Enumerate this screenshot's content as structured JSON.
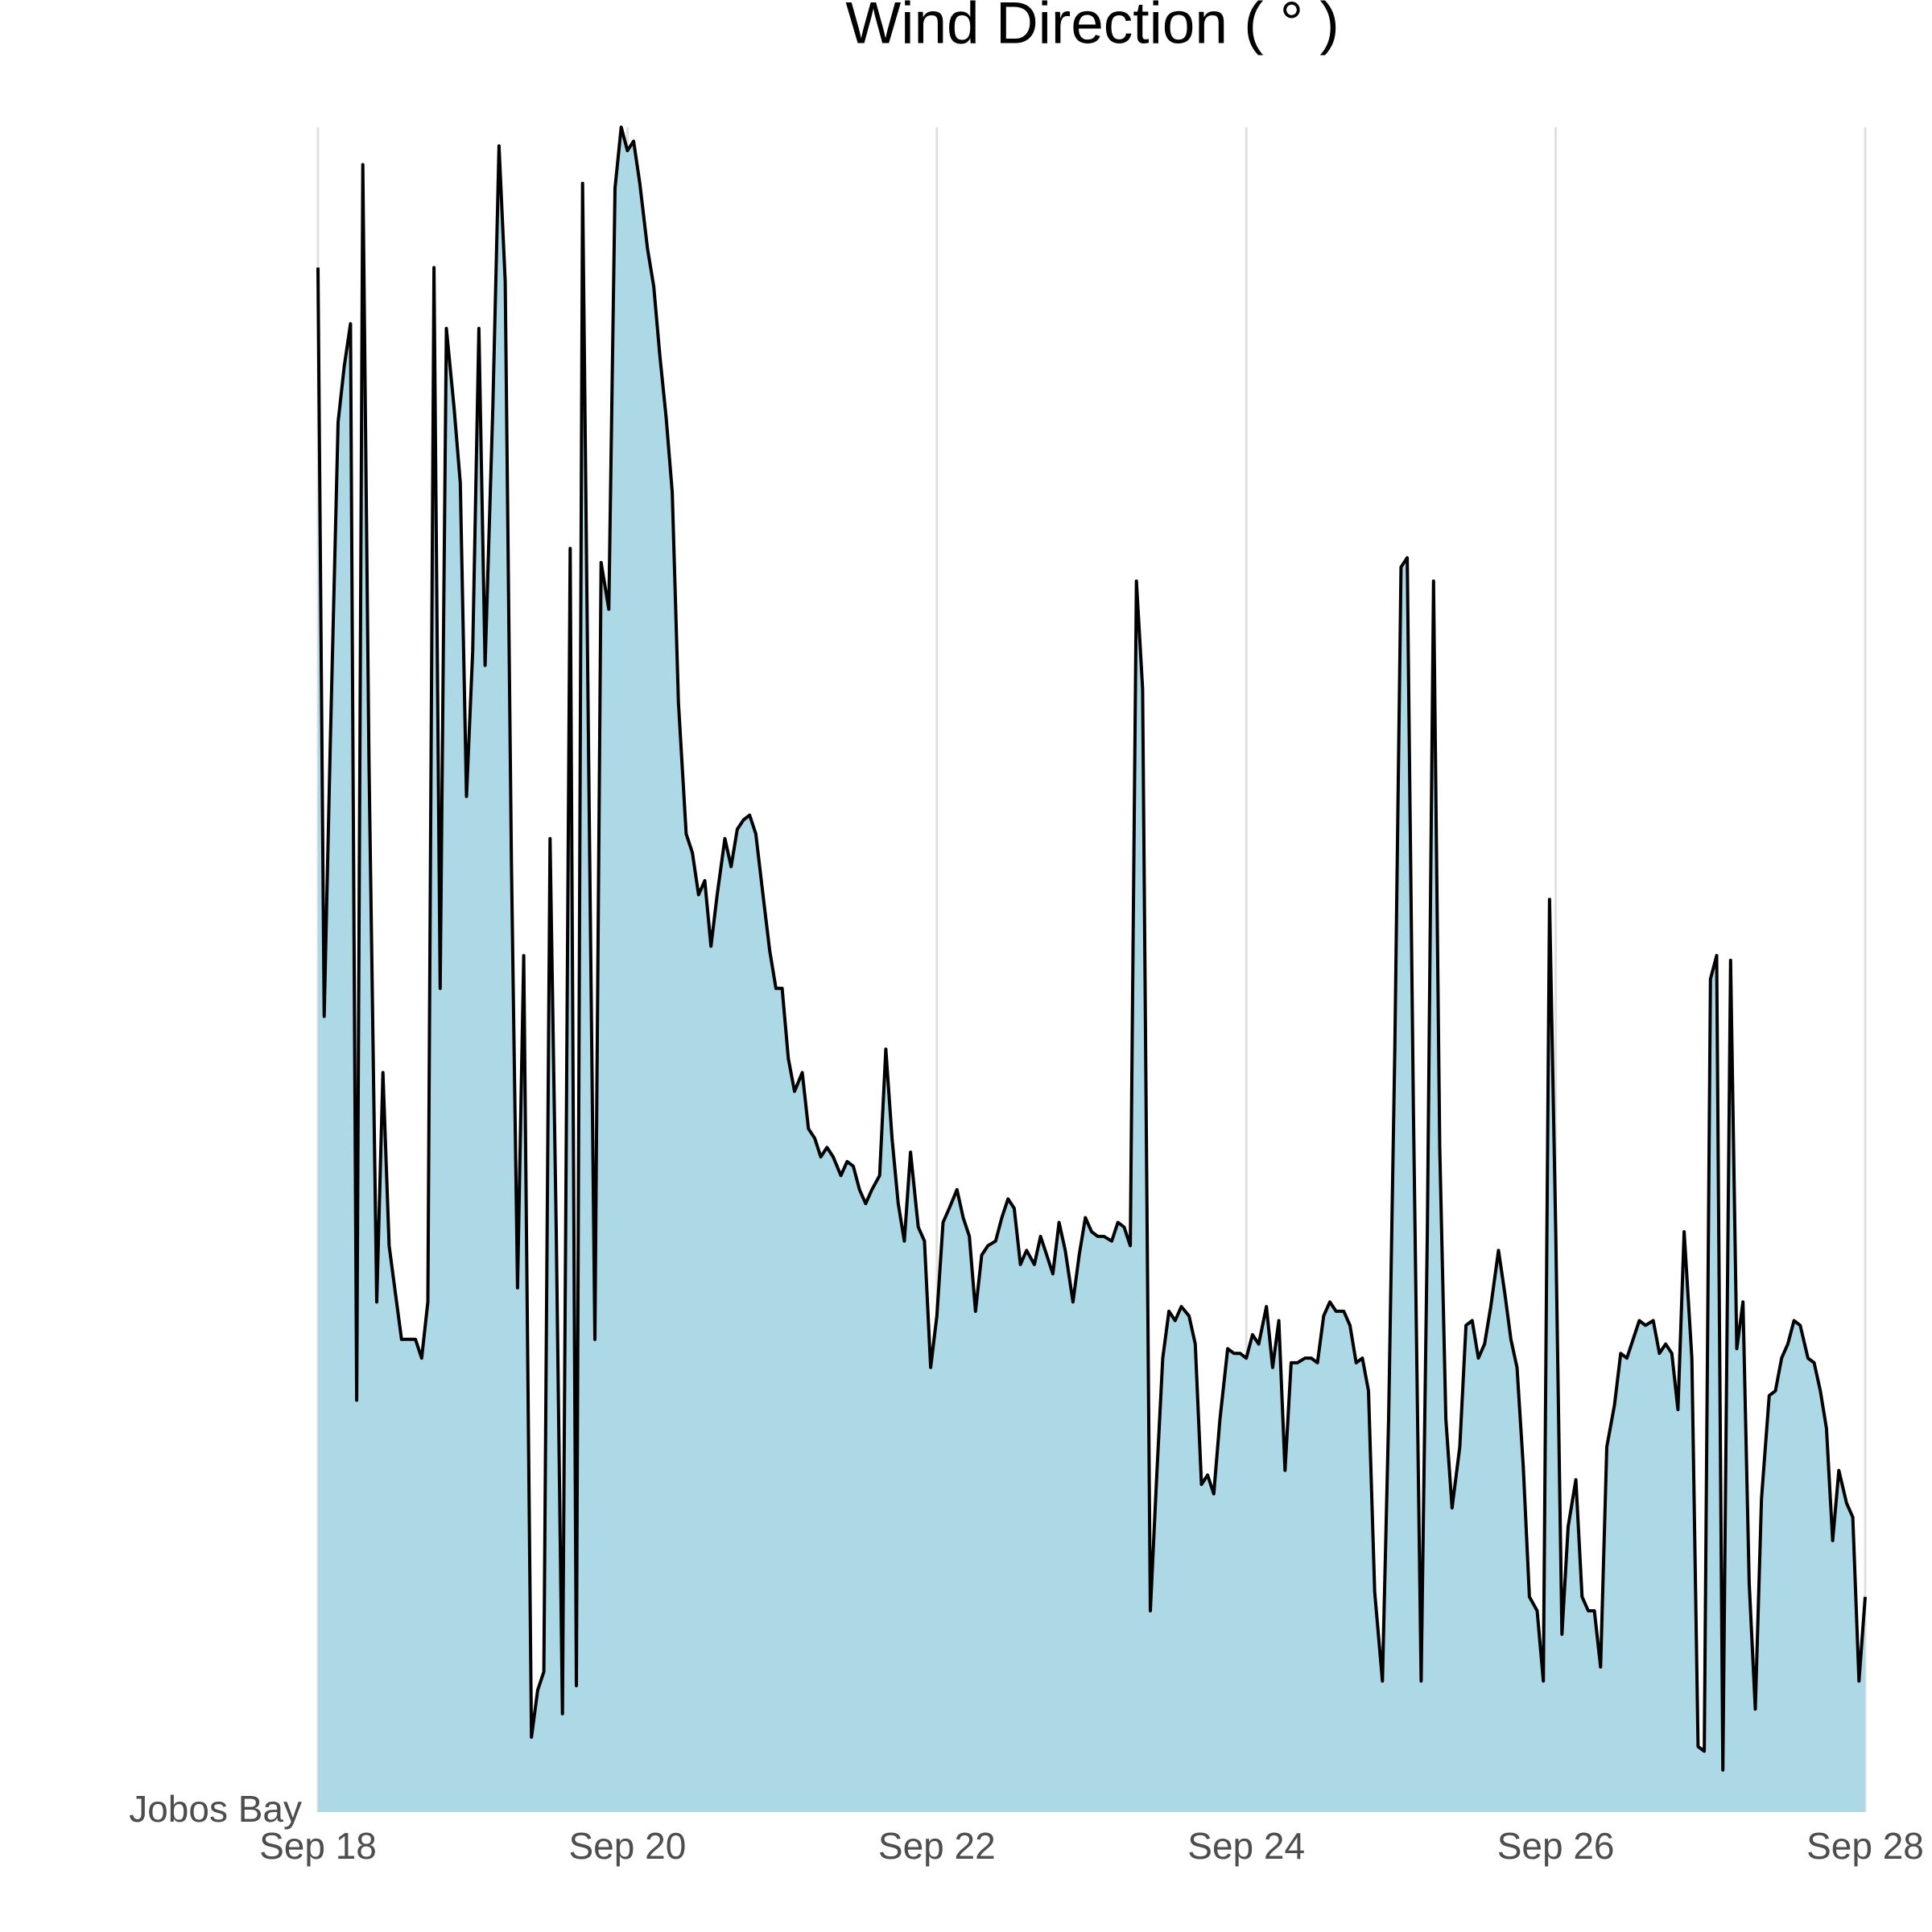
{
  "chart_data": {
    "type": "area",
    "title": "Wind Direction ( ° )",
    "x": [
      18,
      18.04,
      18.08,
      18.13,
      18.17,
      18.21,
      18.25,
      18.29,
      18.33,
      18.38,
      18.42,
      18.46,
      18.5,
      18.54,
      18.58,
      18.63,
      18.67,
      18.71,
      18.75,
      18.79,
      18.83,
      18.88,
      18.92,
      18.96,
      19,
      19.04,
      19.08,
      19.13,
      19.17,
      19.21,
      19.25,
      19.29,
      19.33,
      19.38,
      19.42,
      19.46,
      19.5,
      19.54,
      19.58,
      19.63,
      19.67,
      19.71,
      19.75,
      19.79,
      19.83,
      19.88,
      19.92,
      19.96,
      20,
      20.04,
      20.08,
      20.13,
      20.17,
      20.21,
      20.25,
      20.29,
      20.33,
      20.38,
      20.42,
      20.46,
      20.5,
      20.54,
      20.58,
      20.63,
      20.67,
      20.71,
      20.75,
      20.79,
      20.83,
      20.88,
      20.92,
      20.96,
      21,
      21.04,
      21.08,
      21.13,
      21.17,
      21.21,
      21.25,
      21.29,
      21.33,
      21.38,
      21.42,
      21.46,
      21.5,
      21.54,
      21.58,
      21.63,
      21.67,
      21.71,
      21.75,
      21.79,
      21.83,
      21.88,
      21.92,
      21.96,
      22,
      22.04,
      22.08,
      22.13,
      22.17,
      22.21,
      22.25,
      22.29,
      22.33,
      22.38,
      22.42,
      22.46,
      22.5,
      22.54,
      22.58,
      22.63,
      22.67,
      22.71,
      22.75,
      22.79,
      22.83,
      22.88,
      22.92,
      22.96,
      23,
      23.04,
      23.08,
      23.13,
      23.17,
      23.21,
      23.25,
      23.29,
      23.33,
      23.38,
      23.42,
      23.46,
      23.5,
      23.54,
      23.58,
      23.63,
      23.67,
      23.71,
      23.75,
      23.79,
      23.83,
      23.88,
      23.92,
      23.96,
      24,
      24.04,
      24.08,
      24.13,
      24.17,
      24.21,
      24.25,
      24.29,
      24.33,
      24.38,
      24.42,
      24.46,
      24.5,
      24.54,
      24.58,
      24.63,
      24.67,
      24.71,
      24.75,
      24.79,
      24.83,
      24.88,
      24.92,
      24.96,
      25,
      25.04,
      25.08,
      25.13,
      25.17,
      25.21,
      25.25,
      25.29,
      25.33,
      25.38,
      25.42,
      25.46,
      25.5,
      25.54,
      25.58,
      25.63,
      25.67,
      25.71,
      25.75,
      25.79,
      25.83,
      25.88,
      25.92,
      25.96,
      26,
      26.04,
      26.08,
      26.13,
      26.17,
      26.21,
      26.25,
      26.29,
      26.33,
      26.38,
      26.42,
      26.46,
      26.5,
      26.54,
      26.58,
      26.63,
      26.67,
      26.71,
      26.75,
      26.79,
      26.83,
      26.88,
      26.92,
      26.96,
      27,
      27.04,
      27.08,
      27.13,
      27.17,
      27.21,
      27.25,
      27.29,
      27.33,
      27.38,
      27.42,
      27.46,
      27.5,
      27.54,
      27.58,
      27.63,
      27.67,
      27.71,
      27.75,
      27.79,
      27.83,
      27.88,
      27.92,
      27.96,
      28
    ],
    "series": [
      {
        "name": "Jobos Bay",
        "color": "#add8e6",
        "line_color": "#000000",
        "values": [
          330,
          170,
          229,
          297,
          309,
          318,
          88,
          352,
          224,
          109,
          158,
          121,
          111,
          101,
          101,
          101,
          97,
          109,
          330,
          176,
          317,
          300,
          284,
          217,
          248,
          317,
          245,
          300,
          356,
          327,
          203,
          112,
          183,
          16,
          26,
          30,
          208,
          124,
          21,
          270,
          27,
          348,
          224,
          101,
          267,
          257,
          347,
          360,
          355,
          357,
          348,
          334,
          326,
          311,
          298,
          282,
          237,
          209,
          205,
          196,
          199,
          185,
          196,
          208,
          202,
          210,
          212,
          213,
          209,
          195,
          184,
          176,
          176,
          161,
          154,
          158,
          146,
          144,
          140,
          142,
          140,
          136,
          139,
          138,
          133,
          130,
          133,
          136,
          163,
          144,
          130,
          122,
          141,
          125,
          122,
          95,
          106,
          126,
          129,
          133,
          127,
          123,
          107,
          119,
          121,
          122,
          127,
          131,
          129,
          117,
          120,
          117,
          123,
          119,
          115,
          126,
          120,
          109,
          119,
          127,
          124,
          123,
          123,
          122,
          126,
          125,
          121,
          263,
          240,
          43,
          71,
          97,
          107,
          105,
          108,
          106,
          100,
          70,
          72,
          68,
          84,
          99,
          98,
          98,
          97,
          102,
          100,
          108,
          95,
          105,
          73,
          96,
          96,
          97,
          97,
          96,
          106,
          109,
          107,
          107,
          104,
          96,
          97,
          90,
          47,
          28,
          84,
          163,
          266,
          268,
          150,
          28,
          124,
          263,
          142,
          84,
          65,
          78,
          104,
          105,
          97,
          100,
          108,
          120,
          111,
          101,
          95,
          74,
          46,
          43,
          28,
          195,
          124,
          38,
          61,
          71,
          46,
          43,
          43,
          31,
          78,
          87,
          98,
          97,
          101,
          105,
          104,
          105,
          98,
          100,
          98,
          86,
          124,
          97,
          14,
          13,
          178,
          183,
          9,
          182,
          99,
          109,
          49,
          22,
          67,
          89,
          90,
          97,
          100,
          105,
          104,
          97,
          96,
          90,
          82,
          58,
          73,
          66,
          63,
          28,
          46
        ]
      }
    ],
    "xlim": [
      18,
      28
    ],
    "xticks": [
      {
        "value": 18,
        "label": "Sep 18"
      },
      {
        "value": 20,
        "label": "Sep 20"
      },
      {
        "value": 22,
        "label": "Sep 22"
      },
      {
        "value": 24,
        "label": "Sep 24"
      },
      {
        "value": 26,
        "label": "Sep 26"
      },
      {
        "value": 28,
        "label": "Sep 28"
      }
    ],
    "ylim": [
      0,
      360
    ],
    "grid": "x"
  }
}
